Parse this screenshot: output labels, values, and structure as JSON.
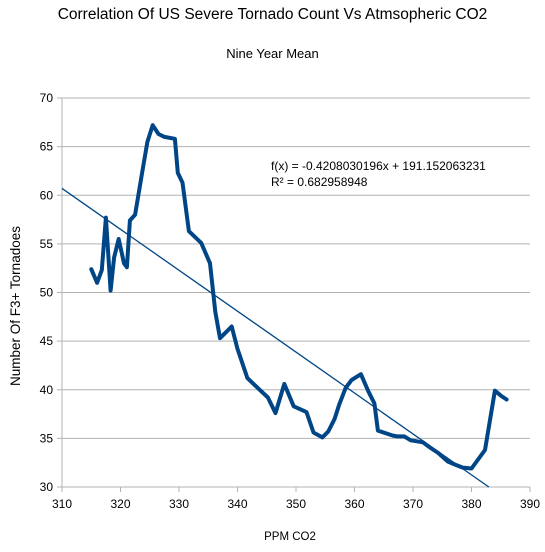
{
  "chart_data": {
    "type": "line",
    "title": "Correlation Of US Severe Tornado Count Vs Atmsopheric CO2",
    "subtitle": "Nine Year Mean",
    "xlabel": "PPM CO2",
    "ylabel": "Number Of F3+ Tornadoes",
    "xlim": [
      310,
      390
    ],
    "ylim": [
      30,
      70
    ],
    "x_ticks": [
      "310",
      "320",
      "330",
      "340",
      "350",
      "360",
      "370",
      "380",
      "390"
    ],
    "y_ticks": [
      "30",
      "35",
      "40",
      "45",
      "50",
      "55",
      "60",
      "65",
      "70"
    ],
    "grid": "horizontal",
    "series": [
      {
        "color": "#004586",
        "points": [
          [
            315.0,
            52.4
          ],
          [
            316.0,
            51.0
          ],
          [
            316.8,
            52.3
          ],
          [
            317.5,
            57.7
          ],
          [
            318.3,
            50.2
          ],
          [
            318.9,
            53.6
          ],
          [
            319.7,
            55.5
          ],
          [
            320.6,
            53.0
          ],
          [
            321.1,
            52.6
          ],
          [
            321.6,
            57.4
          ],
          [
            322.5,
            58.0
          ],
          [
            323.6,
            62.0
          ],
          [
            324.6,
            65.5
          ],
          [
            325.5,
            67.2
          ],
          [
            326.5,
            66.3
          ],
          [
            327.5,
            66.0
          ],
          [
            329.3,
            65.8
          ],
          [
            329.8,
            62.3
          ],
          [
            330.6,
            61.3
          ],
          [
            331.7,
            56.3
          ],
          [
            333.8,
            55.1
          ],
          [
            335.3,
            53.0
          ],
          [
            336.2,
            48.0
          ],
          [
            337.0,
            45.3
          ],
          [
            339.0,
            46.5
          ],
          [
            340.0,
            44.2
          ],
          [
            341.7,
            41.2
          ],
          [
            343.8,
            40.0
          ],
          [
            345.2,
            39.2
          ],
          [
            346.5,
            37.6
          ],
          [
            348.0,
            40.6
          ],
          [
            349.6,
            38.3
          ],
          [
            351.8,
            37.7
          ],
          [
            353.0,
            35.6
          ],
          [
            354.5,
            35.1
          ],
          [
            355.5,
            35.7
          ],
          [
            356.6,
            37.0
          ],
          [
            357.4,
            38.5
          ],
          [
            358.5,
            40.2
          ],
          [
            359.5,
            41.0
          ],
          [
            361.1,
            41.6
          ],
          [
            362.4,
            39.8
          ],
          [
            363.4,
            38.6
          ],
          [
            364.0,
            35.8
          ],
          [
            366.5,
            35.3
          ],
          [
            367.3,
            35.2
          ],
          [
            368.5,
            35.2
          ],
          [
            369.6,
            34.8
          ],
          [
            371.7,
            34.6
          ],
          [
            372.8,
            34.1
          ],
          [
            374.3,
            33.5
          ],
          [
            376.0,
            32.6
          ],
          [
            377.2,
            32.3
          ],
          [
            378.5,
            32.0
          ],
          [
            380.0,
            31.9
          ],
          [
            382.3,
            33.8
          ],
          [
            384.0,
            39.9
          ],
          [
            385.0,
            39.4
          ],
          [
            386.0,
            39.0
          ]
        ]
      }
    ],
    "trendline": {
      "slope": -0.4208030196,
      "intercept": 191.152063231,
      "color": "#004586",
      "annotation_line1": "f(x) = -0.4208030196x + 191.152063231",
      "annotation_line2": "R² = 0.682958948"
    }
  }
}
